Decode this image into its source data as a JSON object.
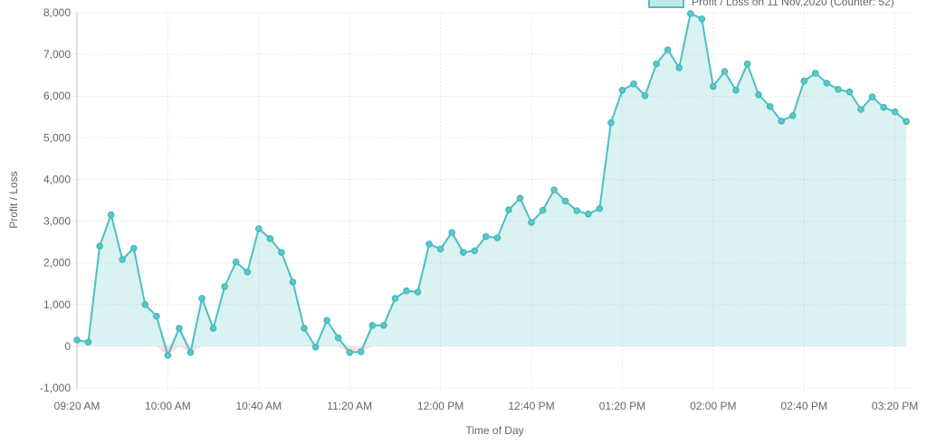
{
  "chart": {
    "legend_label": "Profit / Loss on 11 Nov,2020 (Counter: 52)",
    "xlabel": "Time of Day",
    "ylabel": "Profit / Loss"
  },
  "chart_data": {
    "type": "area",
    "title": "",
    "xlabel": "Time of Day",
    "ylabel": "Profit / Loss",
    "legend": [
      "Profit / Loss on 11 Nov,2020 (Counter: 52)"
    ],
    "legend_position": "top-right",
    "grid": true,
    "ylim": [
      -1000,
      8000
    ],
    "y_tick_labels": [
      "8,000",
      "7,000",
      "6,000",
      "5,000",
      "4,000",
      "3,000",
      "2,000",
      "1,000",
      "0",
      "-1,000"
    ],
    "x_tick_labels": [
      "09:20 AM",
      "10:00 AM",
      "10:40 AM",
      "11:20 AM",
      "12:00 PM",
      "12:40 PM",
      "01:20 PM",
      "02:00 PM",
      "02:40 PM",
      "03:20 PM"
    ],
    "x": [
      "09:20 AM",
      "09:25 AM",
      "09:30 AM",
      "09:35 AM",
      "09:40 AM",
      "09:45 AM",
      "09:50 AM",
      "09:55 AM",
      "10:00 AM",
      "10:05 AM",
      "10:10 AM",
      "10:15 AM",
      "10:20 AM",
      "10:25 AM",
      "10:30 AM",
      "10:35 AM",
      "10:40 AM",
      "10:45 AM",
      "10:50 AM",
      "10:55 AM",
      "11:00 AM",
      "11:05 AM",
      "11:10 AM",
      "11:15 AM",
      "11:20 AM",
      "11:25 AM",
      "11:30 AM",
      "11:35 AM",
      "11:40 AM",
      "11:45 AM",
      "11:50 AM",
      "11:55 AM",
      "12:00 PM",
      "12:05 PM",
      "12:10 PM",
      "12:15 PM",
      "12:20 PM",
      "12:25 PM",
      "12:30 PM",
      "12:35 PM",
      "12:40 PM",
      "12:45 PM",
      "12:50 PM",
      "12:55 PM",
      "01:00 PM",
      "01:05 PM",
      "01:10 PM",
      "01:15 PM",
      "01:20 PM",
      "01:25 PM",
      "01:30 PM",
      "01:35 PM",
      "01:40 PM",
      "01:45 PM",
      "01:50 PM",
      "01:55 PM",
      "02:00 PM",
      "02:05 PM",
      "02:10 PM",
      "02:15 PM",
      "02:20 PM",
      "02:25 PM",
      "02:30 PM",
      "02:35 PM",
      "02:40 PM",
      "02:45 PM",
      "02:50 PM",
      "02:55 PM",
      "03:00 PM",
      "03:05 PM",
      "03:10 PM",
      "03:15 PM",
      "03:20 PM",
      "03:25 PM"
    ],
    "series": [
      {
        "name": "Profit / Loss on 11 Nov,2020 (Counter: 52)",
        "values": [
          150,
          100,
          2400,
          3150,
          2080,
          2350,
          1000,
          720,
          -220,
          430,
          -150,
          1150,
          430,
          1430,
          2020,
          1780,
          2820,
          2580,
          2250,
          1540,
          430,
          -20,
          620,
          200,
          -150,
          -130,
          500,
          500,
          1150,
          1330,
          1300,
          2450,
          2330,
          2730,
          2250,
          2290,
          2630,
          2600,
          3270,
          3550,
          2970,
          3260,
          3750,
          3480,
          3250,
          3170,
          3300,
          5360,
          6140,
          6290,
          6010,
          6770,
          7110,
          6680,
          7980,
          7850,
          6230,
          6590,
          6140,
          6770,
          6030,
          5750,
          5400,
          5530,
          6360,
          6550,
          6310,
          6160,
          6100,
          5680,
          5980,
          5730,
          5620,
          5390
        ]
      }
    ],
    "colors": {
      "line": "#4BC0C0",
      "fill_positive": "rgba(75,192,192,0.20)",
      "fill_negative": "rgba(255,99,132,0.22)",
      "marker_fill": "#5cc7c7",
      "marker_stroke": "#3fb8b8",
      "grid": "rgba(0,0,0,0.09)",
      "axis_line": "rgba(0,0,0,0.22)",
      "tick_text": "#666666"
    }
  }
}
